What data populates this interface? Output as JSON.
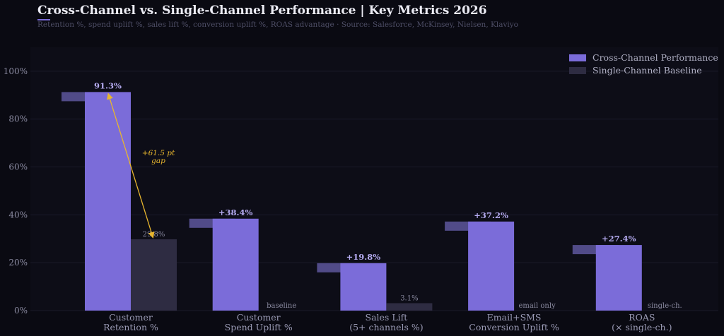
{
  "title": "Cross-Channel vs. Single-Channel Performance  |  Key Metrics 2026",
  "subtitle": "Retention %, spend uplift %, sales lift %, conversion uplift %, ROAS advantage  ·  Source: Salesforce, McKinsey, Nielsen, Klaviyo",
  "colors": {
    "background": "#0a0a12",
    "plot_background": "#0d0d17",
    "cross_channel": "#7b6cd9",
    "single_channel": "#2e2c42",
    "annotation": "#e8b62e"
  },
  "chart_data": {
    "type": "bar",
    "categories": [
      [
        "Customer",
        "Retention %"
      ],
      [
        "Customer",
        "Spend Uplift %"
      ],
      [
        "Sales Lift",
        "(5+ channels %)"
      ],
      [
        "Email+SMS",
        "Conversion Uplift %"
      ],
      [
        "ROAS",
        "(× single-ch.)"
      ]
    ],
    "series": [
      {
        "name": "Cross-Channel Performance",
        "values": [
          91.3,
          38.4,
          19.8,
          37.2,
          27.4
        ],
        "labels": [
          "91.3%",
          "+38.4%",
          "+19.8%",
          "+37.2%",
          "+27.4%"
        ]
      },
      {
        "name": "Single-Channel Baseline",
        "values": [
          29.8,
          0,
          3.1,
          0,
          0
        ],
        "labels": [
          "29.8%",
          "baseline",
          "3.1%",
          "email only",
          "single-ch."
        ]
      }
    ],
    "yticks": [
      "0%",
      "20%",
      "40%",
      "60%",
      "80%",
      "100%"
    ],
    "ylim": [
      0,
      110
    ],
    "grid": true,
    "legend_position": "top-right",
    "annotation": {
      "text_line1": "+61.5 pt",
      "text_line2": "gap",
      "from": 29.8,
      "to": 91.3,
      "category_index": 0
    }
  }
}
